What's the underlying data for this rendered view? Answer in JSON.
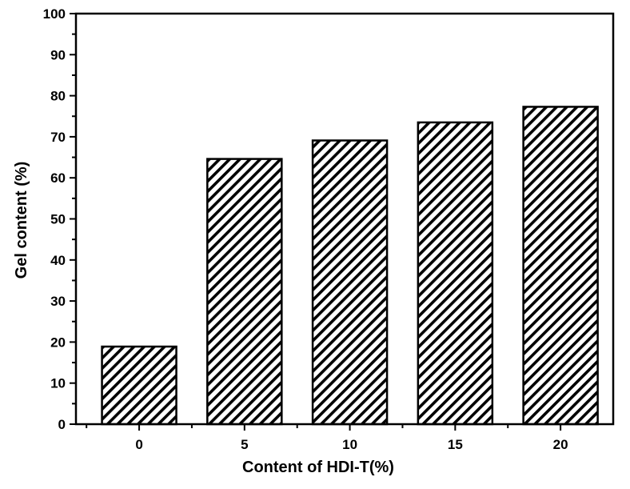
{
  "chart_data": {
    "type": "bar",
    "title": "",
    "xlabel": "Content of HDI-T(%)",
    "ylabel": "Gel content (%)",
    "categories": [
      "0",
      "5",
      "10",
      "15",
      "20"
    ],
    "values": [
      18.9,
      64.6,
      69.1,
      73.5,
      77.3
    ],
    "ylim": [
      0,
      100
    ],
    "yticks": [
      0,
      10,
      20,
      30,
      40,
      50,
      60,
      70,
      80,
      90,
      100
    ],
    "yticklabels": [
      "0",
      "10",
      "20",
      "30",
      "40",
      "50",
      "60",
      "70",
      "80",
      "90",
      "100"
    ],
    "bar_fill": "diagonal-hatch",
    "bar_color": "#000000",
    "background": "#ffffff",
    "grid": false,
    "legend": "none"
  }
}
